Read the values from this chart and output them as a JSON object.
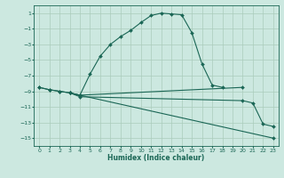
{
  "title": "",
  "xlabel": "Humidex (Indice chaleur)",
  "bg_color": "#cce8e0",
  "grid_color": "#aaccbb",
  "line_color": "#1a6655",
  "xlim": [
    -0.5,
    23.5
  ],
  "ylim": [
    -16,
    2
  ],
  "yticks": [
    1,
    -1,
    -3,
    -5,
    -7,
    -9,
    -11,
    -13,
    -15
  ],
  "xticks": [
    0,
    1,
    2,
    3,
    4,
    5,
    6,
    7,
    8,
    9,
    10,
    11,
    12,
    13,
    14,
    15,
    16,
    17,
    18,
    19,
    20,
    21,
    22,
    23
  ],
  "line1_x": [
    0,
    1,
    2,
    3,
    4,
    5,
    6,
    7,
    8,
    9,
    10,
    11,
    12,
    13,
    14,
    15,
    16,
    17,
    18
  ],
  "line1_y": [
    -8.5,
    -8.8,
    -9.0,
    -9.2,
    -9.5,
    -6.8,
    -4.5,
    -3.0,
    -2.0,
    -1.2,
    -0.2,
    0.7,
    1.0,
    0.9,
    0.8,
    -1.5,
    -5.5,
    -8.2,
    -8.5
  ],
  "line2_x": [
    0,
    1,
    2,
    3,
    4,
    20
  ],
  "line2_y": [
    -8.5,
    -8.8,
    -9.0,
    -9.2,
    -9.5,
    -8.5
  ],
  "line3_x": [
    3,
    4,
    23
  ],
  "line3_y": [
    -9.2,
    -9.5,
    -15.0
  ],
  "line4_x": [
    3,
    4,
    20,
    21,
    22,
    23
  ],
  "line4_y": [
    -9.2,
    -9.7,
    -10.2,
    -10.5,
    -13.2,
    -13.5
  ]
}
